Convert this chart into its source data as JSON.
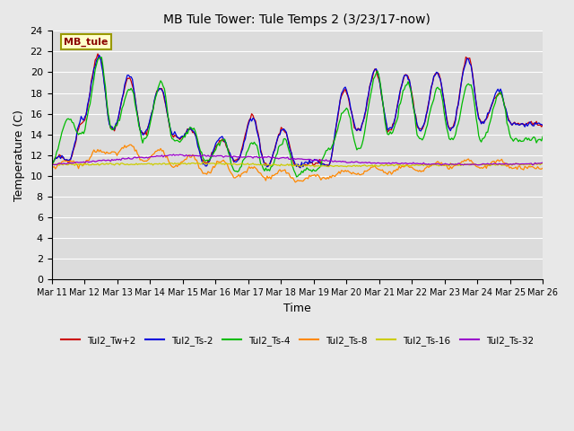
{
  "title": "MB Tule Tower: Tule Temps 2 (3/23/17-now)",
  "xlabel": "Time",
  "ylabel": "Temperature (C)",
  "ylim": [
    0,
    24
  ],
  "yticks": [
    0,
    2,
    4,
    6,
    8,
    10,
    12,
    14,
    16,
    18,
    20,
    22,
    24
  ],
  "bg_color": "#dcdcdc",
  "fig_color": "#e8e8e8",
  "legend_label": "MB_tule",
  "legend_bg": "#ffffcc",
  "legend_border": "#999900",
  "series_colors": {
    "Tul2_Tw+2": "#cc0000",
    "Tul2_Ts-2": "#0000dd",
    "Tul2_Ts-4": "#00bb00",
    "Tul2_Ts-8": "#ff8800",
    "Tul2_Ts-16": "#cccc00",
    "Tul2_Ts-32": "#9900cc"
  },
  "x_labels": [
    "Mar 11",
    "Mar 12",
    "Mar 13",
    "Mar 14",
    "Mar 15",
    "Mar 16",
    "Mar 17",
    "Mar 18",
    "Mar 19",
    "Mar 20",
    "Mar 21",
    "Mar 22",
    "Mar 23",
    "Mar 24",
    "Mar 25",
    "Mar 26"
  ],
  "n_days": 16
}
